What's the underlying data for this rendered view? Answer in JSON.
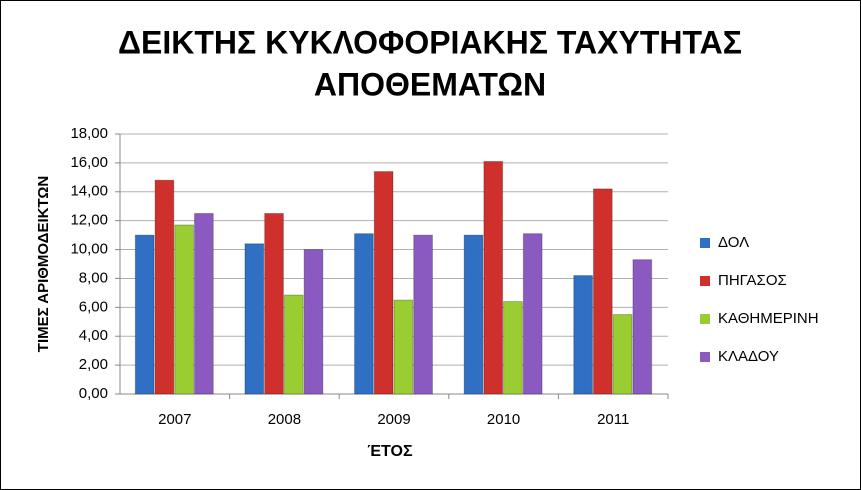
{
  "chart_data": {
    "type": "bar",
    "title": [
      "ΔΕΙΚΤΗΣ ΚΥΚΛΟΦΟΡΙΑΚΗΣ ΤΑΧΥΤΗΤΑΣ",
      "ΑΠΟΘΕΜΑΤΩΝ"
    ],
    "x_label": "ΈΤΟΣ",
    "y_label": "ΤΙΜΕΣ ΑΡΙΘΜΟΔΕΙΚΤΩΝ",
    "categories": [
      "2007",
      "2008",
      "2009",
      "2010",
      "2011"
    ],
    "series": [
      {
        "name": "ΔΟΛ",
        "color": "#2f6fc4",
        "values": [
          11.0,
          10.4,
          11.1,
          11.0,
          8.2
        ]
      },
      {
        "name": "ΠΗΓΑΣΟΣ",
        "color": "#d0302c",
        "values": [
          14.8,
          12.5,
          15.4,
          16.1,
          14.2
        ]
      },
      {
        "name": "ΚΑΘΗΜΕΡΙΝΗ",
        "color": "#9acd32",
        "values": [
          11.7,
          6.85,
          6.5,
          6.4,
          5.5
        ]
      },
      {
        "name": "ΚΛΑΔΟΥ",
        "color": "#8a5ac0",
        "values": [
          12.5,
          10.0,
          11.0,
          11.1,
          9.3
        ]
      }
    ],
    "ylim": [
      0,
      18
    ],
    "yticks": [
      {
        "value": 0,
        "label": "0,00"
      },
      {
        "value": 2,
        "label": "2,00"
      },
      {
        "value": 4,
        "label": "4,00"
      },
      {
        "value": 6,
        "label": "6,00"
      },
      {
        "value": 8,
        "label": "8,00"
      },
      {
        "value": 10,
        "label": "10,00"
      },
      {
        "value": 12,
        "label": "12,00"
      },
      {
        "value": 14,
        "label": "14,00"
      },
      {
        "value": 16,
        "label": "16,00"
      },
      {
        "value": 18,
        "label": "18,00"
      }
    ],
    "grid": true,
    "legend": "right"
  }
}
